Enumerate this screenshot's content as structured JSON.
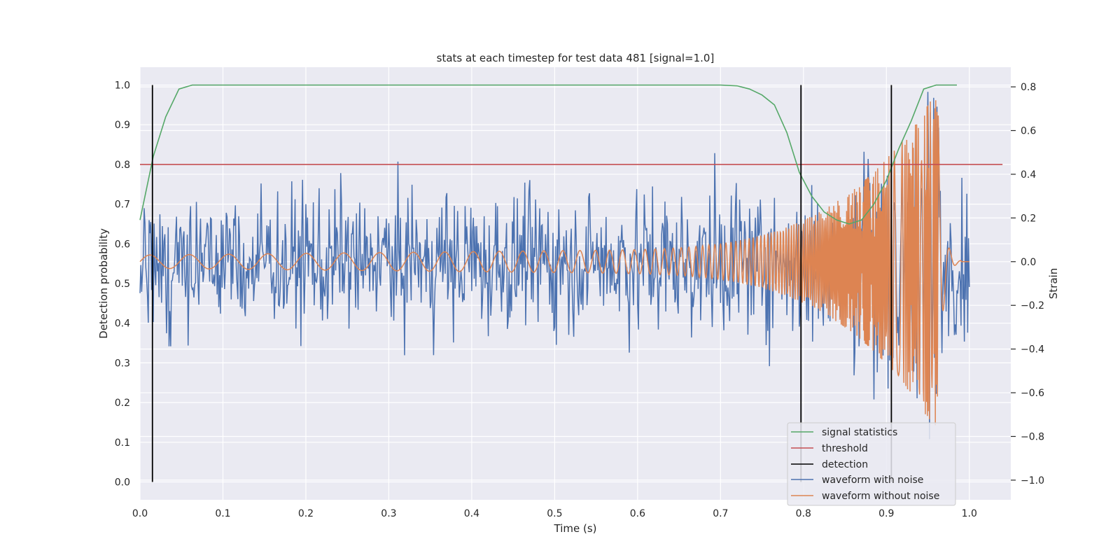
{
  "chart_data": {
    "type": "line",
    "title": "stats at each timestep for test data 481 [signal=1.0]",
    "xlabel": "Time (s)",
    "ylabel_left": "Detection probability",
    "ylabel_right": "Strain",
    "xlim": [
      0.0,
      1.05
    ],
    "ylim_left": [
      -0.045,
      1.045
    ],
    "ylim_right": [
      -1.09,
      0.89
    ],
    "x_ticks": [
      "0.0",
      "0.1",
      "0.2",
      "0.3",
      "0.4",
      "0.5",
      "0.6",
      "0.7",
      "0.8",
      "0.9",
      "1.0"
    ],
    "y_left_ticks": [
      "0.0",
      "0.1",
      "0.2",
      "0.3",
      "0.4",
      "0.5",
      "0.6",
      "0.7",
      "0.8",
      "0.9",
      "1.0"
    ],
    "y_right_ticks": [
      "−1.0",
      "−0.8",
      "−0.6",
      "−0.4",
      "−0.2",
      "0.0",
      "0.2",
      "0.4",
      "0.6",
      "0.8"
    ],
    "grid": true,
    "legend_position": "lower-right",
    "colors": {
      "plot_bg": "#eaeaf2",
      "grid": "#ffffff",
      "signal": "#55a868",
      "threshold": "#c44e52",
      "detection": "#000000",
      "noisy": "#4c72b0",
      "clean": "#dd8452"
    },
    "series": [
      {
        "name": "signal statistics",
        "axis": "left",
        "x": [
          0.0,
          0.016,
          0.031,
          0.047,
          0.063,
          0.078,
          0.094,
          0.11,
          0.2,
          0.3,
          0.4,
          0.5,
          0.6,
          0.7,
          0.72,
          0.735,
          0.75,
          0.765,
          0.78,
          0.795,
          0.81,
          0.825,
          0.84,
          0.855,
          0.87,
          0.885,
          0.9,
          0.915,
          0.93,
          0.945,
          0.96,
          0.975,
          0.985
        ],
        "y": [
          0.66,
          0.82,
          0.92,
          0.99,
          1.0,
          1.0,
          1.0,
          1.0,
          1.0,
          1.0,
          1.0,
          1.0,
          1.0,
          1.0,
          0.998,
          0.99,
          0.975,
          0.95,
          0.88,
          0.78,
          0.72,
          0.68,
          0.66,
          0.65,
          0.66,
          0.7,
          0.76,
          0.84,
          0.91,
          0.99,
          1.0,
          1.0,
          1.0
        ]
      },
      {
        "name": "threshold",
        "axis": "left",
        "x": [
          0.0,
          1.04
        ],
        "y": [
          0.8,
          0.8
        ]
      },
      {
        "name": "detection",
        "axis": "left",
        "x": [
          0.015,
          0.797,
          0.906
        ],
        "y_range": [
          0.0,
          1.0
        ]
      },
      {
        "name": "waveform with noise",
        "axis": "right",
        "generated": true,
        "x_range": [
          0.0,
          1.0
        ],
        "amplitude": 0.3
      },
      {
        "name": "waveform without noise",
        "axis": "right",
        "x_range": [
          0.0,
          1.0
        ],
        "chirp": {
          "f0": 21,
          "t_merge": 0.962,
          "amp0": 0.03,
          "amp_peak": 0.75,
          "ringdown_end": 0.99
        }
      }
    ]
  }
}
